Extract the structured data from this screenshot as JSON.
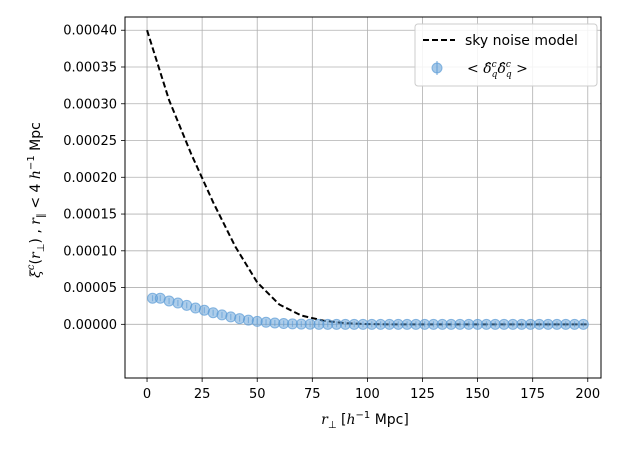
{
  "chart_data": {
    "type": "line",
    "xlabel": "r⊥ [h⁻¹ Mpc]",
    "ylabel": "ξᶜ(r⊥) , r∥ < 4 h⁻¹ Mpc",
    "xlim": [
      -10,
      206
    ],
    "ylim": [
      -7.3e-05,
      0.000418
    ],
    "x_ticks": [
      0,
      25,
      50,
      75,
      100,
      125,
      150,
      175,
      200
    ],
    "y_ticks": [
      0.0,
      5e-05,
      0.0001,
      0.00015,
      0.0002,
      0.00025,
      0.0003,
      0.00035,
      0.0004
    ],
    "x_tick_labels": [
      "0",
      "25",
      "50",
      "75",
      "100",
      "125",
      "150",
      "175",
      "200"
    ],
    "y_tick_labels": [
      "0.00000",
      "0.00005",
      "0.00010",
      "0.00015",
      "0.00020",
      "0.00025",
      "0.00030",
      "0.00035",
      "0.00040"
    ],
    "grid": true,
    "legend_position": "top-right",
    "series": [
      {
        "name": "sky noise model",
        "style": "dashed",
        "color": "#000000",
        "x": [
          0,
          10,
          20,
          30,
          40,
          50,
          60,
          70,
          80,
          90,
          100,
          110,
          120,
          150,
          200
        ],
        "y": [
          0.0004,
          0.000305,
          0.000232,
          0.000166,
          0.000106,
          5.7e-05,
          2.7e-05,
          1.2e-05,
          5e-06,
          1.5e-06,
          3e-07,
          0.0,
          0.0,
          0.0,
          0.0
        ]
      },
      {
        "name": "<δ̂_q^c δ̂_q^c>",
        "style": "errorbar-markers",
        "color": "#5b9bd5",
        "x": [
          2.5,
          6,
          10,
          14,
          18,
          22,
          26,
          30,
          34,
          38,
          42,
          46,
          50,
          54,
          58,
          62,
          66,
          70,
          74,
          78,
          82,
          86,
          90,
          94,
          98,
          102,
          106,
          110,
          114,
          118,
          122,
          126,
          130,
          134,
          138,
          142,
          146,
          150,
          154,
          158,
          162,
          166,
          170,
          174,
          178,
          182,
          186,
          190,
          194,
          198
        ],
        "y": [
          3.55e-05,
          3.55e-05,
          3.18e-05,
          2.9e-05,
          2.58e-05,
          2.22e-05,
          1.92e-05,
          1.58e-05,
          1.28e-05,
          1.01e-05,
          7.7e-06,
          5.7e-06,
          4e-06,
          2.8e-06,
          1.8e-06,
          1.1e-06,
          6e-07,
          3e-07,
          1e-07,
          0.0,
          0.0,
          0.0,
          0.0,
          0.0,
          0.0,
          0.0,
          0.0,
          0.0,
          0.0,
          0.0,
          0.0,
          0.0,
          0.0,
          0.0,
          0.0,
          0.0,
          0.0,
          0.0,
          0.0,
          0.0,
          0.0,
          0.0,
          0.0,
          0.0,
          0.0,
          0.0,
          0.0,
          0.0,
          0.0,
          0.0
        ]
      }
    ]
  }
}
